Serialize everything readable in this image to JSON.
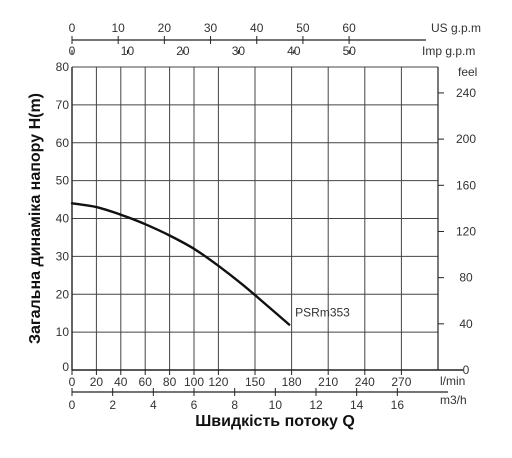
{
  "chart_data": {
    "type": "line",
    "title": "",
    "ylabel": "Загальна динаміка напору H(m)",
    "xlabel": "Швидкість потоку Q",
    "grid": true,
    "x": {
      "unit": "l/min",
      "ticks": [
        0,
        20,
        40,
        60,
        80,
        100,
        120,
        150,
        180,
        210,
        240,
        270
      ],
      "lim": [
        0,
        300
      ]
    },
    "y": {
      "unit": "m",
      "ticks": [
        10,
        20,
        30,
        40,
        50,
        60,
        70,
        80
      ],
      "zero_label": "0",
      "lim": [
        0,
        80
      ]
    },
    "y_secondary": {
      "unit": "feel",
      "ticks": [
        0,
        40,
        80,
        120,
        160,
        200,
        240
      ]
    },
    "x_secondary_bottom": {
      "unit": "m3/h",
      "ticks": [
        0,
        2,
        4,
        6,
        8,
        10,
        12,
        14,
        16
      ]
    },
    "x_top_us": {
      "unit": "US g.p.m",
      "ticks": [
        0,
        10,
        20,
        30,
        40,
        50,
        60
      ]
    },
    "x_top_imp": {
      "unit": "Imp g.p.m",
      "ticks": [
        0,
        10,
        20,
        30,
        40,
        50
      ]
    },
    "series": [
      {
        "name": "PSRm353",
        "x": [
          0,
          20,
          40,
          60,
          80,
          100,
          120,
          140,
          160,
          178
        ],
        "y": [
          44,
          43,
          41,
          38.5,
          35.5,
          32,
          27.5,
          22.5,
          17,
          12
        ]
      }
    ]
  }
}
